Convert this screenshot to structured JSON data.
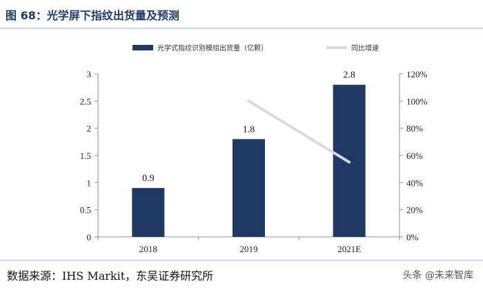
{
  "title": "图 68：光学屏下指纹出货量及预测",
  "source": "数据来源：IHS Markit，东吴证券研究所",
  "watermark": "头条 @未来智库",
  "colors": {
    "bar": "#1f3864",
    "line": "#d9d9d9",
    "title": "#1f3b6e",
    "rule": "#c9d6e8"
  },
  "chart_data": {
    "type": "bar",
    "categories": [
      "2018",
      "2019",
      "2021E"
    ],
    "series": [
      {
        "name": "光学式指纹识别模组出货量（亿颗）",
        "type": "bar",
        "axis": "left",
        "values": [
          0.9,
          1.8,
          2.8
        ],
        "data_labels": [
          "0.9",
          "1.8",
          "2.8"
        ]
      },
      {
        "name": "同比增速",
        "type": "line",
        "axis": "right",
        "values": [
          null,
          100,
          55
        ]
      }
    ],
    "ylim": [
      0,
      3
    ],
    "y_ticks": [
      "0",
      "0.5",
      "1",
      "1.5",
      "2",
      "2.5",
      "3"
    ],
    "y2lim": [
      0,
      120
    ],
    "y2_ticks": [
      "0%",
      "20%",
      "40%",
      "60%",
      "80%",
      "100%",
      "120%"
    ],
    "legend_position": "top",
    "grid": false
  }
}
